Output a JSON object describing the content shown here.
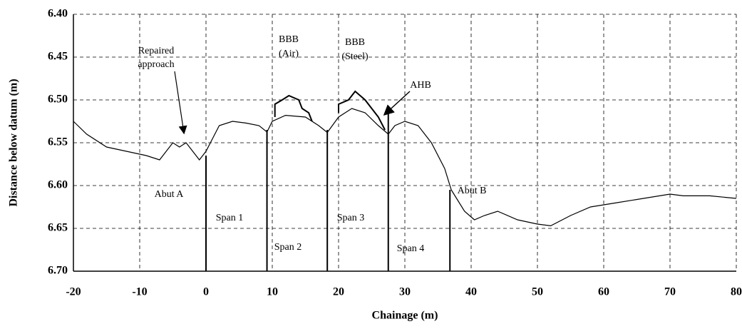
{
  "chart_data": {
    "type": "line",
    "xlabel": "Chainage (m)",
    "ylabel": "Distance below datum (m)",
    "xlim": [
      -20,
      80
    ],
    "xticks": [
      -20,
      -10,
      0,
      10,
      20,
      30,
      40,
      50,
      60,
      70,
      80
    ],
    "ylim": [
      6.4,
      6.7
    ],
    "y_inverted": true,
    "yticks": [
      {
        "value": 6.4,
        "label": "6.40"
      },
      {
        "value": 6.45,
        "label": "6.45"
      },
      {
        "value": 6.5,
        "label": "6.50"
      },
      {
        "value": 6.55,
        "label": "6.55"
      },
      {
        "value": 6.6,
        "label": "6.60"
      },
      {
        "value": 6.65,
        "label": "6.65"
      },
      {
        "value": 6.7,
        "label": "6.70"
      }
    ],
    "grid": true,
    "series": [
      {
        "color": "#000000",
        "x": [
          -20,
          -18,
          -15,
          -12,
          -9,
          -7,
          -6,
          -5,
          -4,
          -3,
          -2,
          -1,
          -0.5,
          0,
          1,
          2,
          4,
          6,
          8,
          9.2,
          10,
          12,
          15,
          17,
          18.3,
          20,
          22,
          24,
          26,
          27.5,
          28.5,
          30,
          32,
          34,
          36,
          37,
          39,
          40.5,
          42,
          44,
          47,
          50,
          52,
          55,
          58,
          62,
          66,
          70,
          72,
          76,
          80
        ],
        "values": [
          6.525,
          6.54,
          6.555,
          6.56,
          6.565,
          6.57,
          6.56,
          6.55,
          6.555,
          6.55,
          6.56,
          6.57,
          6.565,
          6.56,
          6.545,
          6.53,
          6.525,
          6.527,
          6.53,
          6.5375,
          6.525,
          6.518,
          6.52,
          6.53,
          6.538,
          6.52,
          6.51,
          6.515,
          6.53,
          6.54,
          6.53,
          6.525,
          6.53,
          6.55,
          6.58,
          6.605,
          6.63,
          6.64,
          6.635,
          6.63,
          6.64,
          6.645,
          6.647,
          6.635,
          6.625,
          6.62,
          6.615,
          6.61,
          6.612,
          6.612,
          6.615
        ]
      },
      {
        "color": "#000000",
        "x": [
          10.4,
          10.4,
          11.5,
          12.5,
          14,
          14.5,
          15.5,
          16
        ],
        "values": [
          6.52,
          6.505,
          6.5,
          6.495,
          6.5,
          6.51,
          6.515,
          6.525
        ]
      },
      {
        "color": "#000000",
        "x": [
          20,
          20,
          21.5,
          22.5,
          24,
          25,
          26,
          27
        ],
        "values": [
          6.515,
          6.505,
          6.5,
          6.49,
          6.5,
          6.51,
          6.52,
          6.535
        ]
      }
    ],
    "spans": {
      "x": [
        0,
        9.2,
        18.3,
        27.5,
        36.8
      ],
      "tops": [
        6.565,
        6.535,
        6.535,
        6.515,
        6.605
      ]
    },
    "annotations": [
      [
        "Repaired",
        "approach"
      ],
      [
        "BBB",
        "(Air)"
      ],
      [
        "BBB",
        "(Steel)"
      ],
      [
        "AHB"
      ],
      [
        "Abut A"
      ],
      [
        "Span 1"
      ],
      [
        "Span 2"
      ],
      [
        "Span 3"
      ],
      [
        "Span 4"
      ],
      [
        "Abut B"
      ]
    ]
  }
}
